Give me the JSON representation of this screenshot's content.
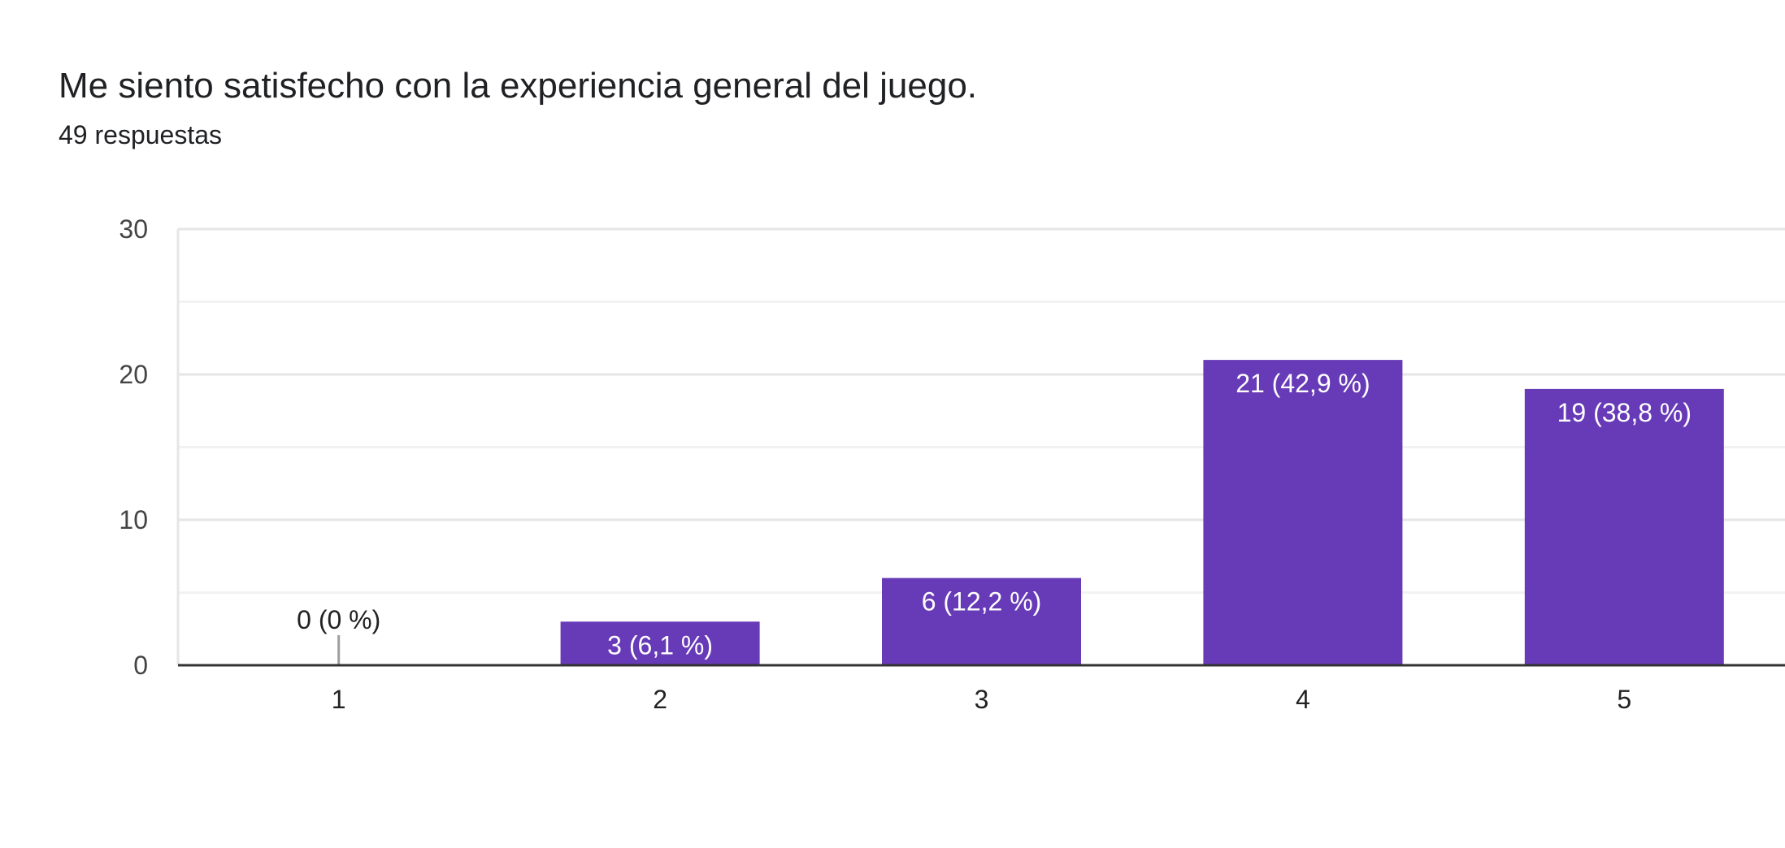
{
  "question": {
    "title": "Me siento satisfecho con la experiencia general del juego.",
    "responses": "49 respuestas"
  },
  "chart_data": {
    "type": "bar",
    "categories": [
      "1",
      "2",
      "3",
      "4",
      "5"
    ],
    "values": [
      0,
      3,
      6,
      21,
      19
    ],
    "data_labels": [
      "0 (0 %)",
      "3 (6,1 %)",
      "6 (12,2 %)",
      "21 (42,9 %)",
      "19 (38,8 %)"
    ],
    "ylim": [
      0,
      30
    ],
    "yticks": [
      0,
      10,
      20,
      30
    ],
    "grid": true,
    "title": "",
    "xlabel": "",
    "ylabel": "",
    "bar_color": "#673ab7"
  }
}
